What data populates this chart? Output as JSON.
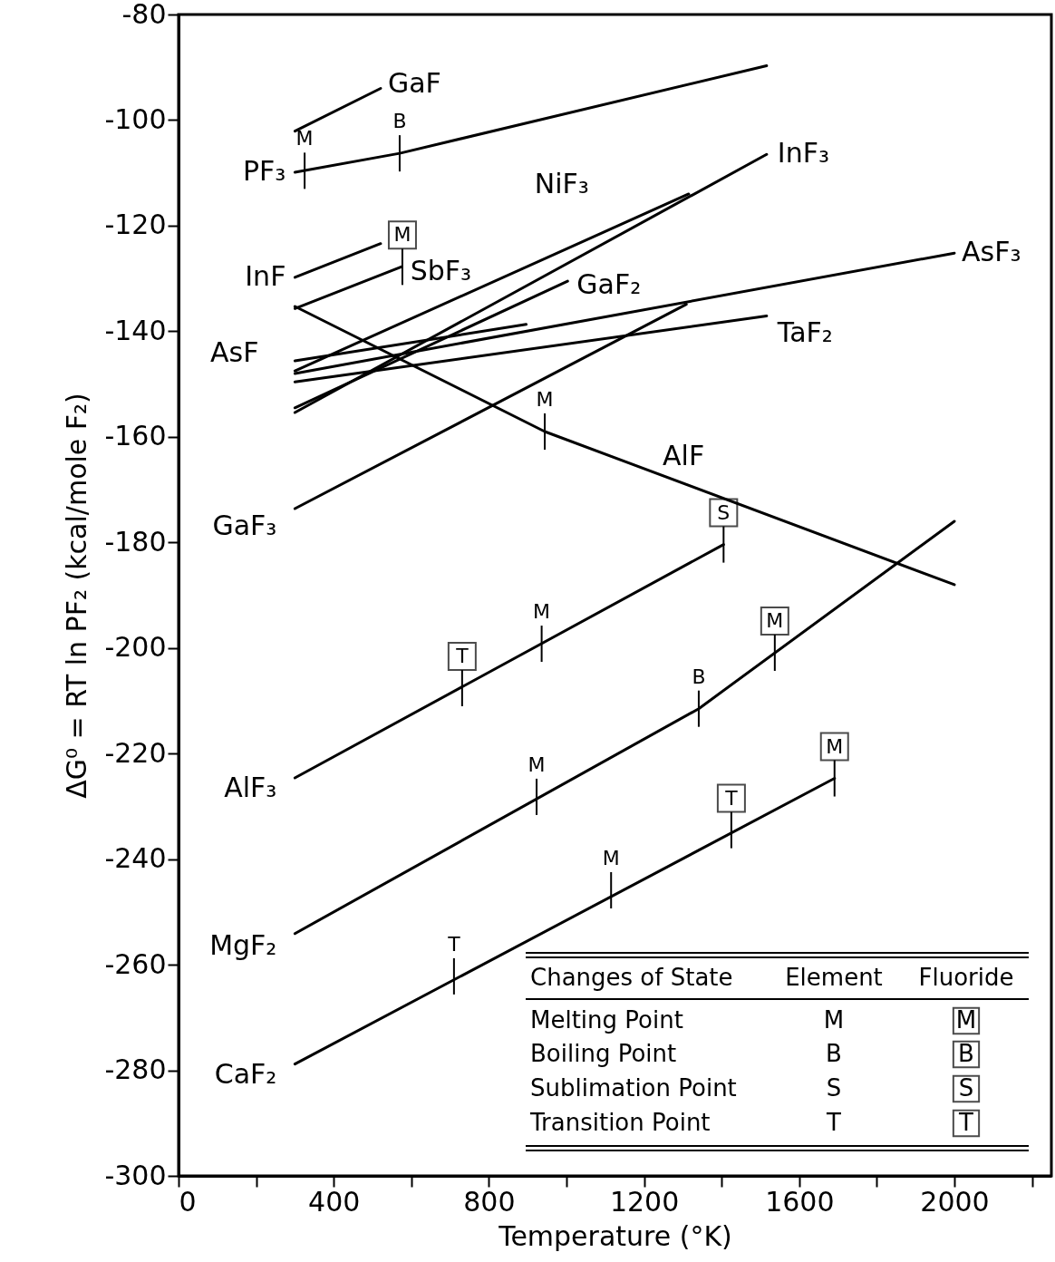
{
  "chart_data": {
    "type": "line",
    "xlabel": "Temperature (°K)",
    "ylabel": "ΔG⁰ = RT ln PF₂ (kcal/mole F₂)",
    "xlim": [
      0,
      2250
    ],
    "ylim": [
      -300,
      -80
    ],
    "xticks": [
      0,
      {
        "value": 200,
        "label": null
      },
      400,
      {
        "value": 600,
        "label": null
      },
      800,
      {
        "value": 1000,
        "label": null
      },
      1200,
      {
        "value": 1400,
        "label": null
      },
      1600,
      {
        "value": 1800,
        "label": null
      },
      2000,
      {
        "value": 2200,
        "label": null
      }
    ],
    "yticks": [
      -300,
      -280,
      -260,
      -240,
      -220,
      -200,
      -180,
      -160,
      -140,
      -120,
      -100,
      -80
    ],
    "grid": false,
    "line_style": "solid",
    "series": [
      {
        "name": "GaF",
        "color": "#000000",
        "x": [
          300,
          521
        ],
        "values": [
          -102.1,
          -94.0
        ]
      },
      {
        "name": "PF₃",
        "color": "#000000",
        "x": [
          300,
          570,
          1516
        ],
        "values": [
          -109.9,
          -106.3,
          -89.7
        ]
      },
      {
        "name": "InF",
        "color": "#000000",
        "x": [
          300,
          521
        ],
        "values": [
          -129.8,
          -123.4
        ]
      },
      {
        "name": "SbF₃",
        "color": "#000000",
        "x": [
          300,
          574
        ],
        "values": [
          -135.7,
          -127.8
        ]
      },
      {
        "name": "NiF₃",
        "color": "#000000",
        "x": [
          300,
          1315
        ],
        "values": [
          -147.5,
          -114.0
        ]
      },
      {
        "name": "InF₃",
        "color": "#000000",
        "x": [
          300,
          1516
        ],
        "values": [
          -155.4,
          -106.5
        ]
      },
      {
        "name": "GaF₂",
        "color": "#000000",
        "x": [
          300,
          1003
        ],
        "values": [
          -154.5,
          -130.5
        ]
      },
      {
        "name": "AsF",
        "color": "#000000",
        "x": [
          300,
          896
        ],
        "values": [
          -145.6,
          -138.7
        ]
      },
      {
        "name": "AsF₃",
        "color": "#000000",
        "x": [
          300,
          2000
        ],
        "values": [
          -148.0,
          -125.2
        ]
      },
      {
        "name": "TaF₂",
        "color": "#000000",
        "x": [
          300,
          1516
        ],
        "values": [
          -149.6,
          -137.1
        ]
      },
      {
        "name": "AlF",
        "color": "#000000",
        "x": [
          300,
          944,
          2000
        ],
        "values": [
          -135.3,
          -159.0,
          -188.0
        ]
      },
      {
        "name": "GaF₃",
        "color": "#000000",
        "x": [
          300,
          1309
        ],
        "values": [
          -173.6,
          -134.9
        ]
      },
      {
        "name": "AlF₃",
        "color": "#000000",
        "x": [
          300,
          1405
        ],
        "values": [
          -224.6,
          -180.4
        ]
      },
      {
        "name": "MgF₂",
        "color": "#000000",
        "x": [
          300,
          1341,
          2000
        ],
        "values": [
          -254.1,
          -211.5,
          -176.0
        ]
      },
      {
        "name": "CaF₂",
        "color": "#000000",
        "x": [
          300,
          1691
        ],
        "values": [
          -278.8,
          -224.7
        ]
      }
    ],
    "annotations": [
      {
        "text": "M",
        "x": 325,
        "y": -109.6
      },
      {
        "text": "B",
        "x": 570,
        "y": -106.3
      },
      {
        "text": "M",
        "x": 944,
        "y": -159.0
      },
      {
        "text": "M",
        "x": 936,
        "y": -199.2
      },
      {
        "text": "M",
        "x": 923,
        "y": -228.2
      },
      {
        "text": "B",
        "x": 1341,
        "y": -211.5
      },
      {
        "text": "T",
        "x": 710,
        "y": -262.2
      },
      {
        "text": "M",
        "x": 1115,
        "y": -245.9
      },
      {
        "text": "M",
        "x": 577,
        "y": -127.8
      },
      {
        "text": "T",
        "x": 731,
        "y": -207.6
      },
      {
        "text": "S",
        "x": 1405,
        "y": -180.4
      },
      {
        "text": "M",
        "x": 1537,
        "y": -200.9
      },
      {
        "text": "T",
        "x": 1425,
        "y": -234.5
      },
      {
        "text": "M",
        "x": 1691,
        "y": -224.7
      },
      "Changes of State",
      "Element",
      "Fluoride",
      "Melting Point",
      "M",
      "M",
      "Boiling Point",
      "B",
      "B",
      "Sublimation Point",
      "S",
      "S",
      "Transition Point",
      "T",
      "T"
    ]
  }
}
